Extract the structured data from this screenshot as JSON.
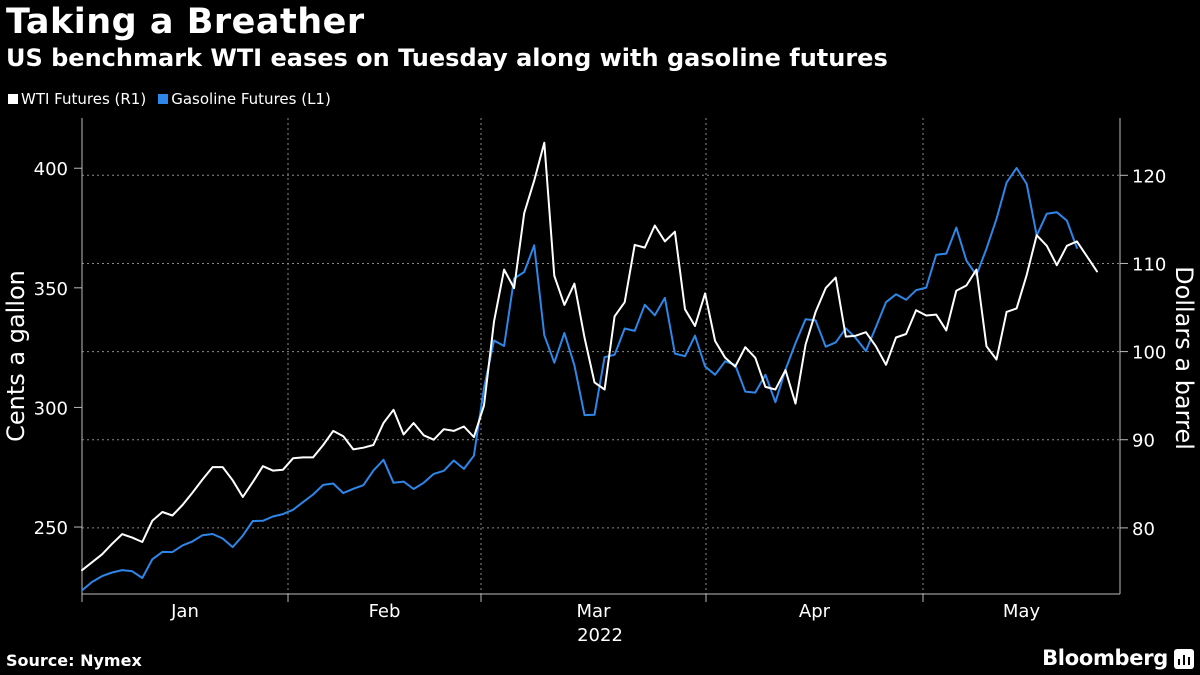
{
  "header": {
    "title": "Taking a Breather",
    "subtitle": "US benchmark WTI eases on Tuesday along with gasoline futures"
  },
  "footer": {
    "source": "Source: Nymex",
    "brand": "Bloomberg"
  },
  "chart_data": {
    "type": "line",
    "title": "Taking a Breather",
    "subtitle": "US benchmark WTI eases on Tuesday along with gasoline futures",
    "x_year_label": "2022",
    "x_ticks": [
      "Jan",
      "Feb",
      "Mar",
      "Apr",
      "May"
    ],
    "left_axis": {
      "label": "Cents a gallon",
      "ticks": [
        250,
        300,
        350,
        400
      ],
      "range": [
        222,
        421
      ]
    },
    "right_axis": {
      "label": "Dollars a barrel",
      "ticks": [
        80,
        90,
        100,
        110,
        120
      ],
      "range": [
        72.5,
        126.5
      ]
    },
    "legend": [
      {
        "name": "WTI Futures (R1)",
        "color": "#ffffff"
      },
      {
        "name": "Gasoline Futures (L1)",
        "color": "#2e86e8"
      }
    ],
    "series": [
      {
        "name": "WTI Futures (R1)",
        "axis": "right",
        "color": "#ffffff",
        "values": [
          75.2,
          76.1,
          77.0,
          78.2,
          79.3,
          78.9,
          78.4,
          80.8,
          81.8,
          81.4,
          82.6,
          84.0,
          85.5,
          86.9,
          86.9,
          85.4,
          83.5,
          85.2,
          87.0,
          86.5,
          86.6,
          87.9,
          88.0,
          88.0,
          89.4,
          91.0,
          90.4,
          88.9,
          89.1,
          89.4,
          91.9,
          93.4,
          90.6,
          91.9,
          90.5,
          90.0,
          91.2,
          91.0,
          91.5,
          90.3,
          93.9,
          103.4,
          109.3,
          107.2,
          115.7,
          119.4,
          123.7,
          108.6,
          105.3,
          107.7,
          101.6,
          96.5,
          95.7,
          104.0,
          105.6,
          112.1,
          111.8,
          114.3,
          112.5,
          113.6,
          104.8,
          102.9,
          106.6,
          101.2,
          99.3,
          98.3,
          100.5,
          99.3,
          96.0,
          95.7,
          97.9,
          94.1,
          100.8,
          104.5,
          107.2,
          108.4,
          101.7,
          101.8,
          102.2,
          100.6,
          98.5,
          101.6,
          102.0,
          104.7,
          104.1,
          104.2,
          102.4,
          106.9,
          107.5,
          109.3,
          100.6,
          99.1,
          104.5,
          104.9,
          108.7,
          113.2,
          112.0,
          109.8,
          112.0,
          112.5,
          110.8,
          109.1
        ]
      },
      {
        "name": "Gasoline Futures (L1)",
        "axis": "left",
        "color": "#2e86e8",
        "values": [
          223.5,
          227.0,
          229.5,
          231.0,
          232.0,
          231.5,
          228.7,
          236.5,
          239.6,
          239.5,
          242.3,
          244.0,
          246.6,
          247.1,
          245.2,
          241.6,
          246.4,
          252.5,
          252.6,
          254.4,
          255.4,
          257.2,
          260.4,
          263.6,
          267.6,
          268.2,
          264.2,
          266.0,
          267.5,
          273.6,
          278.1,
          268.5,
          269.0,
          265.9,
          268.5,
          272.2,
          273.5,
          277.8,
          274.3,
          279.8,
          308.1,
          328.0,
          325.7,
          353.9,
          356.6,
          367.8,
          330.2,
          318.7,
          331.1,
          317.6,
          296.8,
          296.9,
          321.0,
          322.0,
          333.0,
          332.0,
          342.9,
          338.5,
          345.8,
          322.5,
          321.4,
          330.0,
          317.1,
          313.7,
          319.3,
          317.8,
          306.6,
          306.2,
          313.7,
          302.2,
          315.8,
          326.9,
          336.9,
          336.4,
          325.4,
          327.2,
          333.1,
          329.0,
          323.6,
          333.6,
          344.0,
          347.3,
          345.0,
          349.0,
          350.1,
          363.8,
          364.3,
          375.2,
          361.4,
          355.3,
          366.4,
          378.8,
          394.0,
          400.1,
          393.4,
          371.9,
          381.0,
          381.6,
          378.1,
          366.7
        ]
      }
    ]
  }
}
